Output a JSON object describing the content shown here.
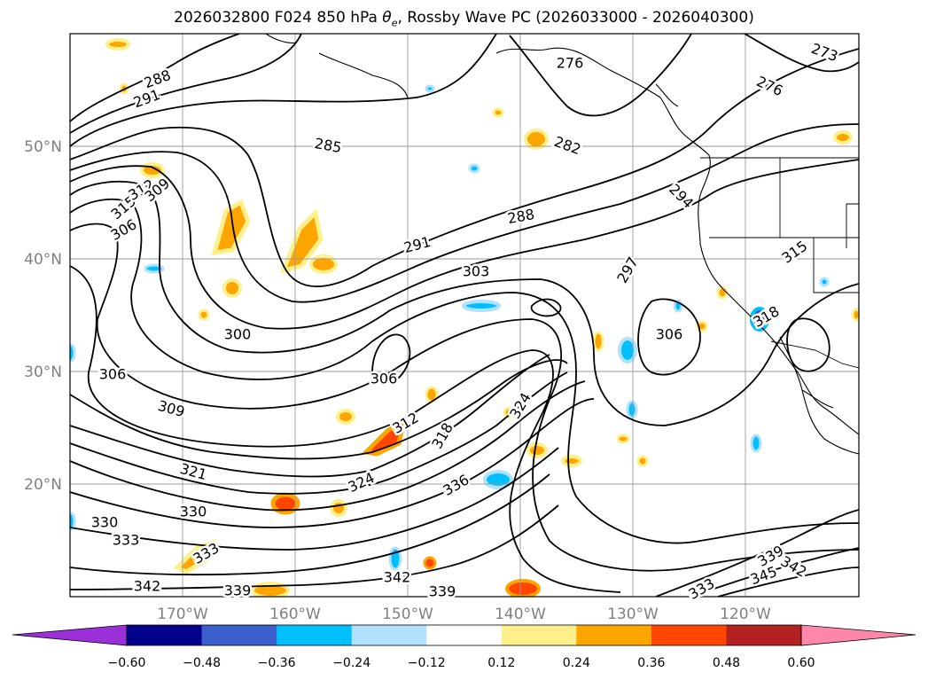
{
  "title": {
    "prefix": "2026032800 F024 850 hPa ",
    "theta": "θ",
    "sub": "e",
    "suffix": ", Rossby Wave PC (2026033000 - 2026040300)"
  },
  "map": {
    "lat_labels": [
      "50°N",
      "40°N",
      "30°N",
      "20°N"
    ],
    "lon_labels": [
      "170°W",
      "160°W",
      "150°W",
      "140°W",
      "130°W",
      "120°W"
    ],
    "contour_labels": [
      "288",
      "291",
      "285",
      "282",
      "276",
      "273",
      "276",
      "315",
      "312",
      "309",
      "306",
      "291",
      "288",
      "294",
      "303",
      "297",
      "315",
      "318",
      "300",
      "306",
      "306",
      "306",
      "309",
      "312",
      "318",
      "324",
      "321",
      "324",
      "336",
      "330",
      "330",
      "333",
      "333",
      "342",
      "339",
      "342",
      "339",
      "333",
      "345",
      "342",
      "339"
    ]
  },
  "colorbar": {
    "ticks": [
      "−0.60",
      "−0.48",
      "−0.36",
      "−0.24",
      "−0.12",
      "0.12",
      "0.24",
      "0.36",
      "0.48",
      "0.60"
    ],
    "colors": [
      "#9b30d9",
      "#00008b",
      "#3a5fcd",
      "#00bfff",
      "#b0e2ff",
      "#ffffff",
      "#fff08c",
      "#ffa500",
      "#ff4500",
      "#b22222",
      "#ff88aa",
      "#ff88aa"
    ]
  }
}
